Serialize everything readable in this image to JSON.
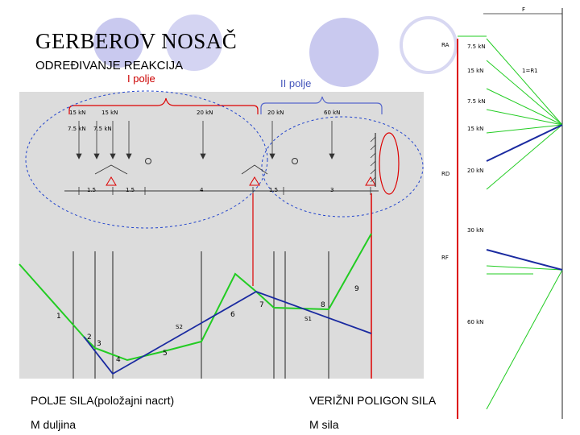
{
  "slide": {
    "title": "GERBEROV NOSAČ",
    "subtitle": "ODREĐIVANJE REAKCIJA",
    "field_1": "I polje",
    "field_2": "II polje",
    "caption_left": "POLJE SILA(položajni nacrt)",
    "caption_right": "VERIŽNI POLIGON SILA",
    "caption_bottom_left": "M duljina",
    "caption_bottom_right": "M sila",
    "colors": {
      "accent_circle": "#c8c8ee",
      "force_red": "#dd0000",
      "polygon_green": "#22cc22",
      "polygon_blue": "#1a2aa0",
      "bracket_blue": "#5566cc"
    }
  },
  "diagram": {
    "loads_top": [
      "15 kN",
      "15 kN",
      "20 kN",
      "20 kN",
      "60 kN"
    ],
    "loads_mid": [
      "7.5 kN",
      "7.5 kN"
    ],
    "spans": [
      "1.5",
      "1.5",
      "4",
      "1.5",
      "3"
    ],
    "polygon_labels": [
      "1",
      "2",
      "3",
      "4",
      "5",
      "6",
      "7",
      "8",
      "9"
    ],
    "ray_labels": [
      "S2",
      "S1"
    ]
  },
  "force_plan": {
    "header": "F",
    "forces": [
      "7.5 kN",
      "15 kN",
      "7.5 kN",
      "15 kN",
      "20 kN",
      "30 kN",
      "60 kN"
    ],
    "reactions": [
      "RA",
      "RD",
      "RF"
    ],
    "note": "1=R1"
  }
}
